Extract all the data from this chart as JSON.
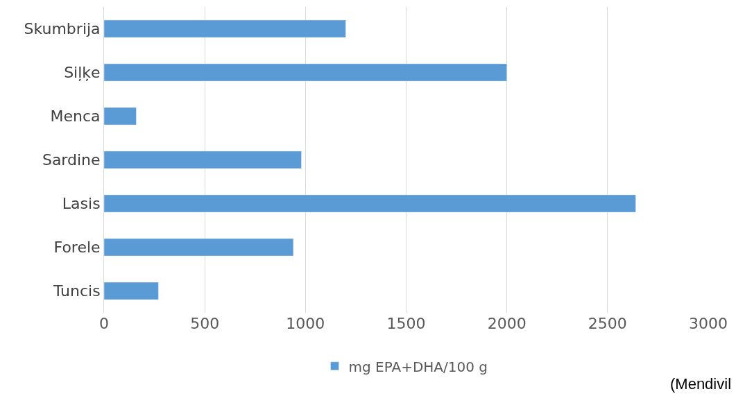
{
  "chart_data": {
    "type": "bar",
    "orientation": "horizontal",
    "categories": [
      "Skumbrija",
      "Siļķe",
      "Menca",
      "Sardine",
      "Lasis",
      "Forele",
      "Tuncis"
    ],
    "series": [
      {
        "name": "mg EPA+DHA/100 g",
        "color": "#5b9bd5",
        "values": [
          1200,
          2000,
          160,
          980,
          2640,
          940,
          270
        ]
      }
    ],
    "xlim": [
      0,
      3000
    ],
    "xticks": [
      0,
      500,
      1000,
      1500,
      2000,
      2500,
      3000
    ],
    "grid": "x",
    "legend": "bottom",
    "annotations": [
      "(Mendivil"
    ]
  }
}
